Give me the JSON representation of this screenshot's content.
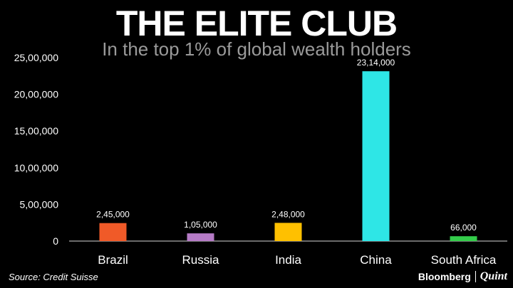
{
  "header": {
    "title": "THE ELITE CLUB",
    "subtitle": "In the top 1% of global wealth holders"
  },
  "footer": {
    "source": "Source: Credit Suisse",
    "brand_left": "Bloomberg",
    "brand_right": "Quint"
  },
  "chart_data": {
    "type": "bar",
    "title": "THE ELITE CLUB",
    "subtitle": "In the top 1% of global wealth holders",
    "categories": [
      "Brazil",
      "Russia",
      "India",
      "China",
      "South Africa"
    ],
    "values": [
      245000,
      105000,
      248000,
      2314000,
      66000
    ],
    "data_labels": [
      "2,45,000",
      "1,05,000",
      "2,48,000",
      "23,14,000",
      "66,000"
    ],
    "colors": [
      "#f05a28",
      "#b57bc6",
      "#ffc000",
      "#2ee6e6",
      "#33cc4a"
    ],
    "ylim": [
      0,
      2500000
    ],
    "yticks": [
      0,
      500000,
      1000000,
      1500000,
      2000000,
      2500000
    ],
    "ytick_labels": [
      "0",
      "5,00,000",
      "10,00,000",
      "15,00,000",
      "20,00,000",
      "25,00,000"
    ],
    "xlabel": "",
    "ylabel": "",
    "grid": false,
    "legend": "none"
  }
}
